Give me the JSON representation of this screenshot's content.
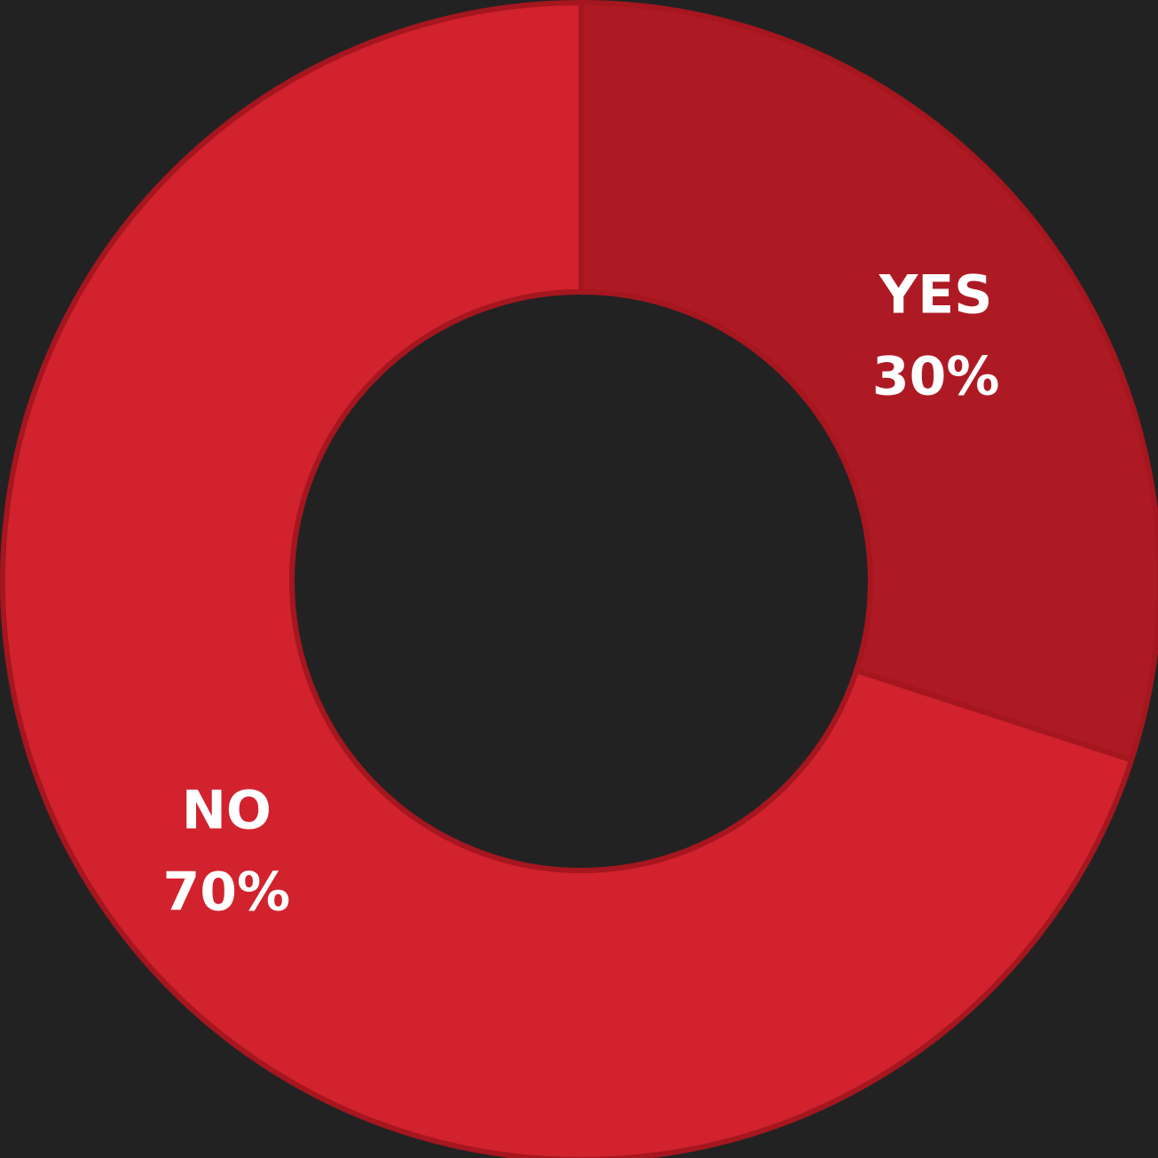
{
  "chart_data": {
    "type": "pie",
    "donut": true,
    "categories": [
      "YES",
      "NO"
    ],
    "values": [
      30,
      70
    ],
    "data_labels": [
      "30%",
      "70%"
    ],
    "colors": [
      "#AE1A24",
      "#D1222E"
    ],
    "background": "#222222",
    "legend": "none",
    "title": ""
  }
}
